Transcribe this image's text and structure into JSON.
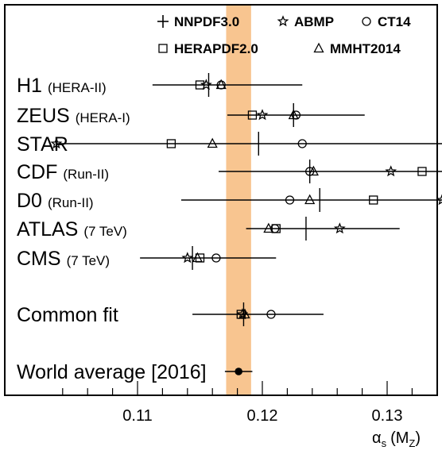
{
  "chart_data": {
    "type": "scatter",
    "xlabel": "α",
    "xlabel_sub": "s",
    "xlabel_suffix": "(M",
    "xlabel_sub2": "Z",
    "xlabel_close": ")",
    "xlim": [
      0.1035,
      0.1385
    ],
    "xticks": [
      {
        "value": 0.11,
        "label": "0.11"
      },
      {
        "value": 0.12,
        "label": "0.12"
      },
      {
        "value": 0.13,
        "label": "0.13"
      }
    ],
    "band": {
      "low": 0.1171,
      "high": 0.1191,
      "color": "#f8c590"
    },
    "legend": [
      {
        "symbol": "plus",
        "label": "NNPDF3.0"
      },
      {
        "symbol": "star",
        "label": "ABMP"
      },
      {
        "symbol": "circle",
        "label": "CT14"
      },
      {
        "symbol": "square",
        "label": "HERAPDF2.0"
      },
      {
        "symbol": "triangle",
        "label": "MMHT2014"
      }
    ],
    "rows": [
      {
        "name": "H1",
        "tag": "(HERA-II)",
        "central": 0.1157,
        "err_low": 0.1112,
        "err_high": 0.1232,
        "points": {
          "star": 0.1155,
          "circle": 0.1167,
          "square": 0.115,
          "triangle": 0.1167
        }
      },
      {
        "name": "ZEUS",
        "tag": "(HERA-I)",
        "central": 0.1225,
        "err_low": 0.1172,
        "err_high": 0.1282,
        "points": {
          "star": 0.12,
          "circle": 0.1227,
          "square": 0.1192,
          "triangle": 0.1225
        }
      },
      {
        "name": "STAR",
        "tag": "",
        "central": 0.1197,
        "err_low": 0.1035,
        "err_high": 0.1385,
        "points": {
          "star": 0.1035,
          "circle": 0.1232,
          "square": 0.1127,
          "triangle": 0.116
        }
      },
      {
        "name": "CDF",
        "tag": "(Run-II)",
        "central": 0.1238,
        "err_low": 0.1165,
        "err_high": 0.1345,
        "points": {
          "star": 0.1303,
          "circle": 0.1238,
          "square": 0.1328,
          "triangle": 0.1241
        }
      },
      {
        "name": "D0",
        "tag": "(Run-II)",
        "central": 0.1246,
        "err_low": 0.1135,
        "err_high": 0.138,
        "points": {
          "star": 0.1344,
          "circle": 0.1222,
          "square": 0.1289,
          "triangle": 0.1238
        }
      },
      {
        "name": "ATLAS",
        "tag": "(7 TeV)",
        "central": 0.1235,
        "err_low": 0.1187,
        "err_high": 0.131,
        "points": {
          "star": 0.1262,
          "circle": 0.121,
          "square": 0.1211,
          "triangle": 0.1205
        }
      },
      {
        "name": "CMS",
        "tag": "(7 TeV)",
        "central": 0.1144,
        "err_low": 0.1102,
        "err_high": 0.1211,
        "points": {
          "star": 0.114,
          "circle": 0.1163,
          "square": 0.115,
          "triangle": 0.1148
        }
      },
      {
        "name": "Common fit",
        "tag": "",
        "central": 0.1185,
        "err_low": 0.1144,
        "err_high": 0.1249,
        "points": {
          "star": 0.1184,
          "circle": 0.1207,
          "square": 0.1183,
          "triangle": 0.1186
        }
      },
      {
        "name": "World average",
        "tag": "[2016]",
        "central": 0.1181,
        "err_low": 0.117,
        "err_high": 0.1192,
        "points": {
          "filled-circle": 0.1181
        }
      }
    ]
  }
}
